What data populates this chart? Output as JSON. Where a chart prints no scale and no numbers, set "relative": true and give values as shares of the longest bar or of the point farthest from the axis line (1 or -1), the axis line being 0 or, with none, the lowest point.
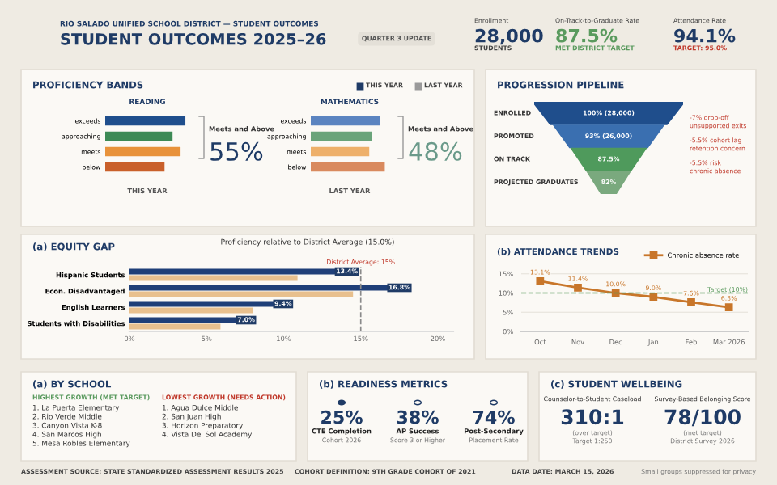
{
  "chart_data": [
    {
      "type": "other",
      "title": "STUDENT OUTCOMES 2025–26",
      "subtitle": "RIO SALADO UNIFIED SCHOOL DISTRICT — STUDENT OUTCOMES",
      "annotations": [
        "QUARTER 3 UPDATE",
        "Enrollment",
        "28,000",
        "STUDENTS",
        "On-Track-to-Graduate Rate",
        "87.5%",
        "MET DISTRICT TARGET",
        "Attendance Rate",
        "94.1%",
        "TARGET: 95.0%"
      ]
    },
    {
      "type": "bar",
      "orientation": "horizontal",
      "relative": true,
      "title": "READING",
      "xlabel": "THIS YEAR",
      "categories": [
        "exceeds",
        "approaching",
        "meets",
        "below"
      ],
      "values": [
        1,
        0.84,
        0.94,
        0.74
      ],
      "colors": [
        "#1f4e8c",
        "#3d8a55",
        "#e8923a",
        "#c9602a"
      ],
      "annotations": [
        "Meets and Above",
        "55%",
        "PROFICIENCY BANDS",
        "THIS YEAR",
        "LAST YEAR"
      ]
    },
    {
      "type": "bar",
      "orientation": "horizontal",
      "relative": true,
      "title": "MATHEMATICS",
      "xlabel": "LAST YEAR",
      "categories": [
        "exceeds",
        "approaching",
        "meets",
        "below"
      ],
      "values": [
        0.93,
        0.83,
        0.79,
        1
      ],
      "colors": [
        "#5b84c0",
        "#6aa47a",
        "#eeb06a",
        "#d98a5e"
      ],
      "annotations": [
        "Meets and Above",
        "48%"
      ]
    },
    {
      "type": "other",
      "title": "PROGRESSION PIPELINE",
      "categories": [
        "ENROLLED",
        "PROMOTED",
        "ON TRACK",
        "PROJECTED GRADUATES"
      ],
      "values": [
        100,
        93,
        87.5,
        82
      ],
      "value_labels": [
        "100% (28,000)",
        "93% (26,000)",
        "87.5%",
        "82%"
      ],
      "colors": [
        "#1f4e8c",
        "#3a6fb0",
        "#4f9a5c",
        "#7aa97e"
      ],
      "annotations": [
        "-7% drop-off",
        "unsupported exits",
        "-5.5% cohort lag",
        "retention concern",
        "-5.5% risk",
        "chronic absence"
      ]
    },
    {
      "type": "bar",
      "orientation": "horizontal",
      "title": "(a) EQUITY GAP",
      "subtitle": "Proficiency relative to District Average (15.0%)",
      "categories": [
        "Hispanic Students",
        "Econ. Disadvantaged",
        "English Learners",
        "Students with Disabilities"
      ],
      "series": [
        {
          "color": "#1f3f78",
          "values": [
            13.4,
            16.8,
            9.4,
            7.0
          ],
          "value_labels": [
            "13.4%",
            "16.8%",
            "9.4%",
            "7.0%"
          ]
        },
        {
          "color": "#e8c08e",
          "values": [
            10.9,
            14.5,
            8.0,
            5.9
          ]
        }
      ],
      "xlim": [
        0,
        21
      ],
      "xticks": [
        {
          "value": 0,
          "label": "0%"
        },
        {
          "value": 5,
          "label": "5%"
        },
        {
          "value": 10,
          "label": "10%"
        },
        {
          "value": 15,
          "label": "15%"
        },
        {
          "value": 20,
          "label": "20%"
        }
      ],
      "ref_lines": [
        {
          "axis": "x",
          "value": 15,
          "label": "District Average: 15%",
          "color": "#8a8a8a",
          "line_style": "dashed"
        }
      ]
    },
    {
      "type": "line",
      "title": "(b) ATTENDANCE TRENDS",
      "categories": [
        "Oct",
        "Nov",
        "Dec",
        "Jan",
        "Feb",
        "Mar 2026"
      ],
      "series": [
        {
          "name": "Chronic absence rate",
          "color": "#c8762a",
          "values": [
            13.1,
            11.4,
            10.0,
            9.0,
            7.6,
            6.3
          ],
          "value_labels": [
            "13.1%",
            "11.4%",
            "10.0%",
            "9.0%",
            "7.6%",
            "6.3%"
          ]
        }
      ],
      "ylim": [
        0,
        16
      ],
      "yticks": [
        {
          "value": 0,
          "label": "0%"
        },
        {
          "value": 5,
          "label": "5%"
        },
        {
          "value": 10,
          "label": "10%"
        },
        {
          "value": 15,
          "label": "15%"
        }
      ],
      "ref_lines": [
        {
          "axis": "y",
          "value": 10,
          "label": "Target (10%)",
          "color": "#5a9a5e",
          "line_style": "dashed"
        }
      ],
      "grid": "y",
      "legend": "top",
      "marker": "square",
      "line_style": "solid"
    },
    {
      "type": "other",
      "title": "(a) BY SCHOOL",
      "annotations": [
        "HIGHEST GROWTH (MET TARGET)",
        "1. La Puerta Elementary",
        "2. Rio Verde Middle",
        "3. Canyon Vista K-8",
        "4. San Marcos High",
        "5. Mesa Robles Elementary",
        "LOWEST GROWTH (NEEDS ACTION)",
        "1. Agua Dulce Middle",
        "2. San Juan High",
        "3. Horizon Preparatory",
        "4. Vista Del Sol Academy"
      ]
    },
    {
      "type": "other",
      "title": "(b) READINESS METRICS",
      "annotations": [
        "25%",
        "CTE Completion",
        "Cohort 2026",
        "38%",
        "AP Success",
        "Score 3 or Higher",
        "74%",
        "Post-Secondary",
        "Placement Rate"
      ]
    },
    {
      "type": "other",
      "title": "(c) STUDENT WELLBEING",
      "annotations": [
        "Counselor-to-Student Caseload",
        "310:1",
        "(over target)",
        "Target 1:250",
        "Survey-Based Belonging Score",
        "78/100",
        "(met target)",
        "District Survey 2026"
      ]
    },
    {
      "type": "other",
      "annotations": [
        "ASSESSMENT SOURCE: STATE STANDARDIZED ASSESSMENT RESULTS 2025",
        "COHORT DEFINITION: 9TH GRADE COHORT OF 2021",
        "DATA DATE: MARCH 15, 2026",
        "Small groups suppressed for privacy"
      ]
    }
  ]
}
